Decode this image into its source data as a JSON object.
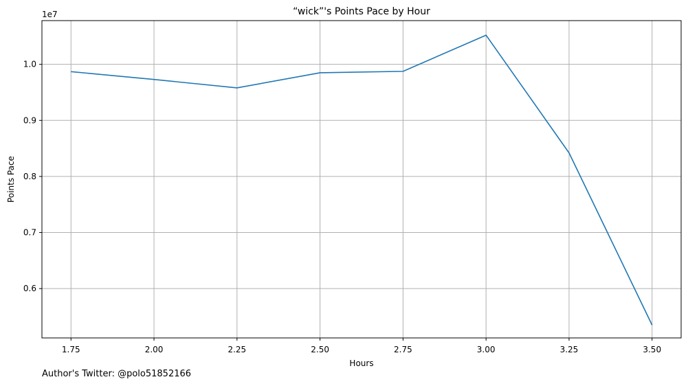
{
  "chart_data": {
    "type": "line",
    "title": "“wick”'s Points Pace by Hour",
    "xlabel": "Hours",
    "ylabel": "Points Pace",
    "y_offset_label": "1e7",
    "x": [
      1.75,
      2.0,
      2.25,
      2.5,
      2.75,
      3.0,
      3.25,
      3.5
    ],
    "series": [
      {
        "values": [
          9870000,
          9730000,
          9580000,
          9850000,
          9875000,
          10520000,
          8420000,
          5350000
        ]
      }
    ],
    "xlim": [
      1.6625,
      3.5875
    ],
    "ylim": [
      5120000.0,
      10780000.0
    ],
    "x_ticks": [
      1.75,
      2.0,
      2.25,
      2.5,
      2.75,
      3.0,
      3.25,
      3.5
    ],
    "x_tick_labels": [
      "1.75",
      "2.00",
      "2.25",
      "2.50",
      "2.75",
      "3.00",
      "3.25",
      "3.50"
    ],
    "y_ticks": [
      6000000.0,
      7000000.0,
      8000000.0,
      9000000.0,
      10000000.0
    ],
    "y_tick_labels": [
      "0.6",
      "0.7",
      "0.8",
      "0.9",
      "1.0"
    ],
    "grid": true,
    "line_color": "#1f77b4",
    "grid_color": "#b0b0b0"
  },
  "footnote": "Author's Twitter: @polo51852166"
}
